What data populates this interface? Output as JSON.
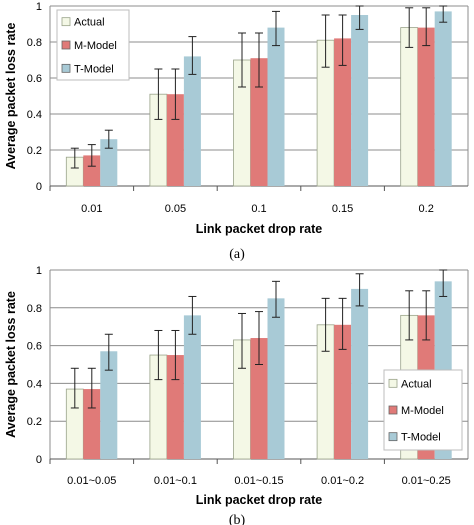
{
  "colors": {
    "Actual": "#f4f8e6",
    "M-Model": "#e07a78",
    "T-Model": "#a8cad6",
    "grid": "#8c8c8c",
    "error_bar": "#222222"
  },
  "chart_data": [
    {
      "type": "bar",
      "panel_label": "(a)",
      "xlabel": "Link packet drop rate",
      "ylabel": "Average packet loss rate",
      "ylim": [
        0,
        1
      ],
      "yticks": [
        "0",
        "0.2",
        "0.4",
        "0.6",
        "0.8",
        "1"
      ],
      "grid": true,
      "legend": "top-left",
      "categories": [
        "0.01",
        "0.05",
        "0.1",
        "0.15",
        "0.2"
      ],
      "series": [
        {
          "name": "Actual",
          "values": [
            0.16,
            0.51,
            0.7,
            0.81,
            0.88
          ],
          "err_low": [
            0.1,
            0.37,
            0.55,
            0.66,
            0.77
          ],
          "err_high": [
            0.21,
            0.65,
            0.85,
            0.95,
            0.99
          ]
        },
        {
          "name": "M-Model",
          "values": [
            0.17,
            0.51,
            0.71,
            0.82,
            0.88
          ],
          "err_low": [
            0.11,
            0.37,
            0.55,
            0.67,
            0.78
          ],
          "err_high": [
            0.23,
            0.65,
            0.85,
            0.95,
            0.99
          ]
        },
        {
          "name": "T-Model",
          "values": [
            0.26,
            0.72,
            0.88,
            0.95,
            0.97
          ],
          "err_low": [
            0.21,
            0.62,
            0.78,
            0.87,
            0.91
          ],
          "err_high": [
            0.31,
            0.83,
            0.97,
            1.0,
            1.0
          ]
        }
      ]
    },
    {
      "type": "bar",
      "panel_label": "(b)",
      "xlabel": "Link packet drop rate",
      "ylabel": "Average packet loss rate",
      "ylim": [
        0,
        1
      ],
      "yticks": [
        "0",
        "0.2",
        "0.4",
        "0.6",
        "0.8",
        "1"
      ],
      "grid": true,
      "legend": "bottom-right",
      "categories": [
        "0.01~0.05",
        "0.01~0.1",
        "0.01~0.15",
        "0.01~0.2",
        "0.01~0.25"
      ],
      "series": [
        {
          "name": "Actual",
          "values": [
            0.37,
            0.55,
            0.63,
            0.71,
            0.76
          ],
          "err_low": [
            0.27,
            0.42,
            0.48,
            0.57,
            0.63
          ],
          "err_high": [
            0.48,
            0.68,
            0.77,
            0.85,
            0.89
          ]
        },
        {
          "name": "M-Model",
          "values": [
            0.37,
            0.55,
            0.64,
            0.71,
            0.76
          ],
          "err_low": [
            0.27,
            0.42,
            0.5,
            0.58,
            0.63
          ],
          "err_high": [
            0.48,
            0.68,
            0.78,
            0.85,
            0.89
          ]
        },
        {
          "name": "T-Model",
          "values": [
            0.57,
            0.76,
            0.85,
            0.9,
            0.94
          ],
          "err_low": [
            0.47,
            0.66,
            0.75,
            0.81,
            0.86
          ],
          "err_high": [
            0.66,
            0.86,
            0.94,
            0.98,
            1.0
          ]
        }
      ]
    }
  ]
}
